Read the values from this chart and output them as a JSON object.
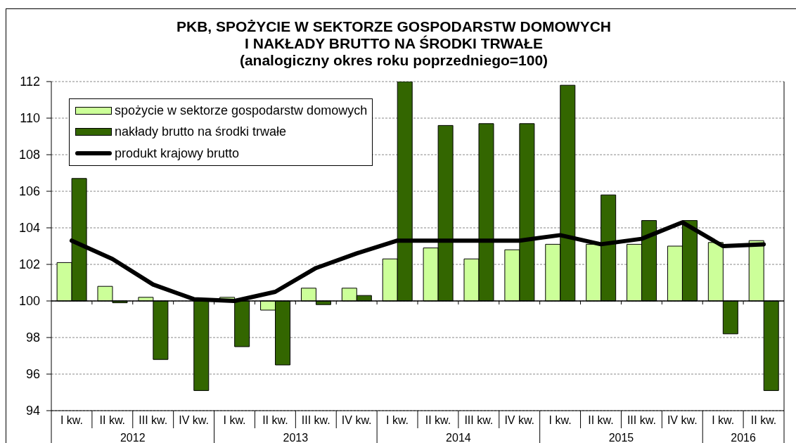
{
  "chart_data": {
    "type": "bar",
    "title": "PKB, SPOŻYCIE W SEKTORZE GOSPODARSTW DOMOWYCH\nI NAKŁADY BRUTTO NA ŚRODKI TRWAŁE",
    "subtitle": "(analogiczny okres roku poprzedniego=100)",
    "categories": [
      "I kw.",
      "II kw.",
      "III kw.",
      "IV kw.",
      "I kw.",
      "II kw.",
      "III kw.",
      "IV kw.",
      "I kw.",
      "II kw.",
      "III kw.",
      "IV kw.",
      "I kw.",
      "II kw.",
      "III kw.",
      "IV kw.",
      "I kw.",
      "II kw."
    ],
    "series": [
      {
        "name": "spożycie w sektorze gospodarstw domowych",
        "color": "#ccff99",
        "base": [
          100,
          100,
          100,
          null,
          100,
          100,
          100,
          100,
          100,
          100,
          100,
          100,
          100,
          100,
          100,
          100,
          100,
          100
        ],
        "values": [
          2.1,
          0.8,
          0.2,
          null,
          0.2,
          -0.5,
          0.7,
          0.7,
          2.3,
          2.9,
          2.3,
          2.8,
          3.1,
          3.1,
          3.1,
          3.0,
          3.2,
          3.3
        ]
      },
      {
        "name": "nakłady brutto na środki trwałe",
        "color": "#336600",
        "base": [
          100,
          100,
          100,
          100,
          100,
          100,
          100,
          100,
          100,
          100,
          100,
          100,
          100,
          100,
          100,
          100,
          100,
          100
        ],
        "values": [
          6.7,
          -0.1,
          -3.2,
          -4.9,
          -2.5,
          -3.5,
          -0.2,
          0.3,
          12.0,
          9.6,
          9.7,
          9.7,
          11.8,
          5.8,
          4.4,
          4.4,
          -1.8,
          -4.9
        ]
      },
      {
        "name": "produkt krajowy brutto",
        "type": "line",
        "color": "#000000",
        "line_style": "solid",
        "values": [
          103.3,
          102.3,
          100.9,
          100.1,
          100.0,
          100.5,
          101.8,
          102.6,
          103.3,
          103.3,
          103.3,
          103.3,
          103.6,
          103.1,
          103.4,
          104.3,
          103.0,
          103.1
        ]
      }
    ],
    "ylim": [
      94,
      112
    ],
    "yticks": [
      94,
      96,
      98,
      100,
      102,
      104,
      106,
      108,
      110,
      112
    ],
    "grid": "y",
    "legend": "top left",
    "ref_lines": [
      {
        "axis": "y",
        "value": 100
      }
    ],
    "annotations": [
      "2012",
      "2013",
      "2014",
      "2015",
      "2016"
    ]
  }
}
